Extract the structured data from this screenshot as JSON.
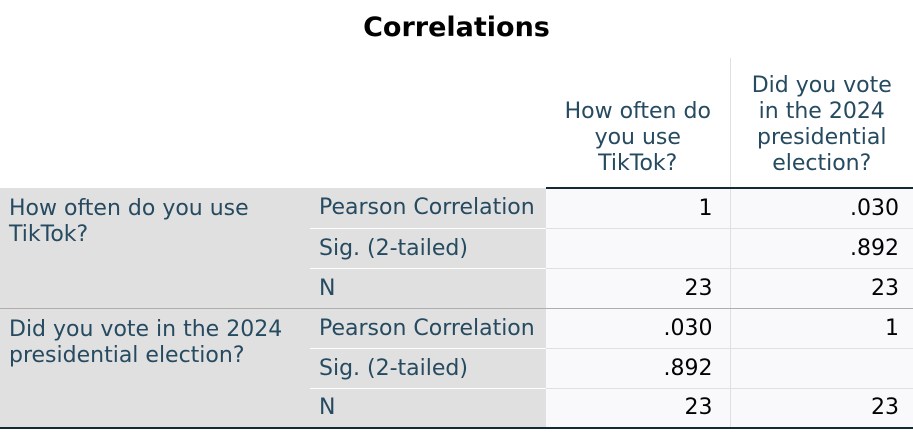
{
  "title": "Correlations",
  "column_headers": [
    "How often do you use TikTok?",
    "Did you vote in the 2024 presidential election?"
  ],
  "stat_labels": {
    "pearson": "Pearson Correlation",
    "sig": "Sig. (2-tailed)",
    "n": "N"
  },
  "rows": [
    {
      "variable": "How often do you use TikTok?",
      "pearson": [
        "1",
        ".030"
      ],
      "sig": [
        "",
        ".892"
      ],
      "n": [
        "23",
        "23"
      ]
    },
    {
      "variable": "Did you vote in the 2024 presidential election?",
      "pearson": [
        ".030",
        "1"
      ],
      "sig": [
        ".892",
        ""
      ],
      "n": [
        "23",
        "23"
      ]
    }
  ],
  "colors": {
    "header_text": "#264a60",
    "label_background": "#e0e0e0",
    "cell_background": "#f9f9fb",
    "value_text": "#010205",
    "rule": "#152935"
  }
}
